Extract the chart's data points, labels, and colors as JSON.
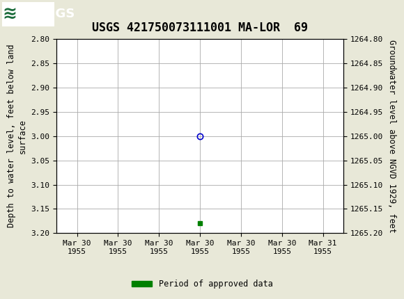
{
  "title": "USGS 421750073111001 MA-LOR  69",
  "left_ylabel": "Depth to water level, feet below land\nsurface",
  "right_ylabel": "Groundwater level above NGVD 1929, feet",
  "ylim_left": [
    2.8,
    3.2
  ],
  "ylim_right": [
    1264.8,
    1265.2
  ],
  "yticks_left": [
    2.8,
    2.85,
    2.9,
    2.95,
    3.0,
    3.05,
    3.1,
    3.15,
    3.2
  ],
  "yticks_right": [
    1264.8,
    1264.85,
    1264.9,
    1264.95,
    1265.0,
    1265.05,
    1265.1,
    1265.15,
    1265.2
  ],
  "xtick_labels": [
    "Mar 30\n1955",
    "Mar 30\n1955",
    "Mar 30\n1955",
    "Mar 30\n1955",
    "Mar 30\n1955",
    "Mar 30\n1955",
    "Mar 31\n1955"
  ],
  "x_positions": [
    0,
    1,
    2,
    3,
    4,
    5,
    6
  ],
  "xlim": [
    -0.5,
    6.5
  ],
  "data_point_blue_x": 3.0,
  "data_point_blue_y": 3.0,
  "data_point_green_x": 3.0,
  "data_point_green_y": 3.18,
  "blue_marker_color": "#0000cc",
  "green_marker_color": "#008000",
  "legend_label": "Period of approved data",
  "legend_color": "#008000",
  "header_color": "#1a6b3a",
  "background_color": "#e8e8d8",
  "plot_bg_color": "#ffffff",
  "grid_color": "#aaaaaa",
  "title_fontsize": 12,
  "axis_label_fontsize": 8.5,
  "tick_fontsize": 8
}
